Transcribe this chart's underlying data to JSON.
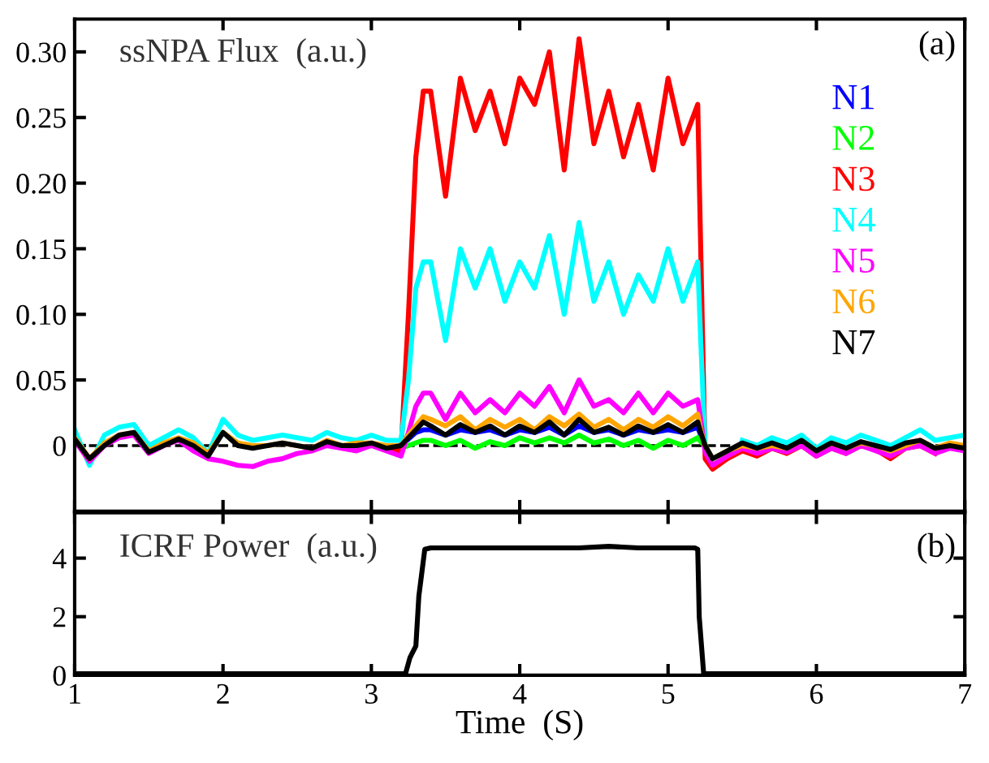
{
  "chart_data": [
    {
      "type": "line",
      "ylabel": "ssNPA Flux  (a.u.)",
      "annotations": [
        "(a)"
      ],
      "x": [
        1.0,
        1.1,
        1.2,
        1.3,
        1.4,
        1.5,
        1.6,
        1.7,
        1.8,
        1.9,
        2.0,
        2.1,
        2.2,
        2.3,
        2.4,
        2.5,
        2.6,
        2.7,
        2.8,
        2.9,
        3.0,
        3.1,
        3.2,
        3.25,
        3.3,
        3.35,
        3.4,
        3.5,
        3.6,
        3.7,
        3.8,
        3.9,
        4.0,
        4.1,
        4.2,
        4.3,
        4.4,
        4.5,
        4.6,
        4.7,
        4.8,
        4.9,
        5.0,
        5.1,
        5.2,
        5.22,
        5.25,
        5.3,
        5.4,
        5.5,
        5.6,
        5.7,
        5.8,
        5.9,
        6.0,
        6.1,
        6.2,
        6.3,
        6.4,
        6.5,
        6.6,
        6.7,
        6.8,
        6.9,
        7.0
      ],
      "series": [
        {
          "name": "N1",
          "color": "#0000ff",
          "values": [
            null,
            null,
            null,
            null,
            null,
            null,
            null,
            null,
            null,
            null,
            null,
            null,
            null,
            null,
            null,
            null,
            null,
            null,
            null,
            null,
            null,
            null,
            null,
            0.005,
            0.01,
            0.012,
            0.012,
            0.008,
            0.012,
            0.01,
            0.012,
            0.008,
            0.012,
            0.01,
            0.014,
            0.008,
            0.015,
            0.01,
            0.012,
            0.008,
            0.012,
            0.01,
            0.012,
            0.01,
            0.014,
            0.008,
            null,
            null,
            null,
            null,
            null,
            null,
            null,
            null,
            null,
            null,
            null,
            null,
            null,
            null,
            null,
            null,
            null,
            null,
            null
          ]
        },
        {
          "name": "N2",
          "color": "#00ff00",
          "values": [
            null,
            null,
            null,
            null,
            null,
            null,
            null,
            null,
            null,
            null,
            null,
            null,
            null,
            null,
            null,
            null,
            null,
            null,
            null,
            null,
            null,
            null,
            -0.002,
            0.0,
            0.002,
            0.004,
            0.004,
            0.0,
            0.004,
            -0.002,
            0.003,
            0.0,
            0.006,
            0.002,
            0.006,
            0.002,
            0.008,
            0.002,
            0.005,
            0.0,
            0.004,
            -0.002,
            0.004,
            0.0,
            0.006,
            0.003,
            0.0,
            null,
            null,
            null,
            null,
            null,
            null,
            null,
            null,
            null,
            null,
            null,
            null,
            null,
            null,
            null,
            null,
            null,
            null
          ]
        },
        {
          "name": "N3",
          "color": "#ff0000",
          "values": [
            null,
            null,
            null,
            null,
            null,
            null,
            null,
            null,
            null,
            null,
            null,
            null,
            null,
            null,
            null,
            null,
            null,
            null,
            null,
            null,
            null,
            -0.002,
            -0.004,
            0.1,
            0.22,
            0.27,
            0.27,
            0.19,
            0.28,
            0.24,
            0.27,
            0.23,
            0.28,
            0.26,
            0.3,
            0.21,
            0.31,
            0.23,
            0.27,
            0.22,
            0.26,
            0.21,
            0.28,
            0.23,
            0.26,
            0.15,
            -0.01,
            -0.018,
            -0.01,
            -0.004,
            -0.008,
            -0.002,
            -0.006,
            0.0,
            -0.008,
            -0.002,
            -0.006,
            0.0,
            -0.003,
            -0.01,
            -0.002,
            0.0,
            -0.006,
            null,
            null
          ]
        },
        {
          "name": "N4",
          "color": "#00ffff",
          "values": [
            0.012,
            -0.015,
            0.008,
            0.014,
            0.016,
            0.0,
            0.006,
            0.012,
            0.006,
            -0.006,
            0.02,
            0.008,
            0.004,
            0.006,
            0.008,
            0.006,
            0.004,
            0.01,
            0.006,
            0.004,
            0.008,
            0.004,
            0.004,
            0.05,
            0.12,
            0.14,
            0.14,
            0.08,
            0.15,
            0.12,
            0.15,
            0.11,
            0.14,
            0.12,
            0.16,
            0.1,
            0.17,
            0.11,
            0.14,
            0.1,
            0.13,
            0.11,
            0.15,
            0.11,
            0.14,
            0.08,
            0.0,
            -0.014,
            null,
            0.004,
            0.0,
            0.006,
            0.002,
            0.008,
            -0.002,
            0.006,
            0.002,
            0.008,
            0.004,
            0.0,
            0.006,
            0.012,
            0.004,
            0.006,
            0.008
          ]
        },
        {
          "name": "N5",
          "color": "#ff00ff",
          "values": [
            0.004,
            -0.012,
            0.0,
            0.006,
            0.008,
            -0.006,
            0.0,
            0.004,
            -0.004,
            -0.01,
            -0.012,
            -0.015,
            -0.016,
            -0.012,
            -0.01,
            -0.006,
            -0.004,
            0.0,
            -0.002,
            -0.004,
            0.0,
            -0.004,
            -0.008,
            0.01,
            0.03,
            0.04,
            0.04,
            0.02,
            0.04,
            0.025,
            0.035,
            0.025,
            0.04,
            0.03,
            0.045,
            0.025,
            0.05,
            0.03,
            0.035,
            0.025,
            0.04,
            0.025,
            0.04,
            0.03,
            0.035,
            0.02,
            -0.005,
            -0.015,
            -0.008,
            -0.002,
            -0.006,
            -0.002,
            -0.005,
            0.0,
            -0.008,
            -0.002,
            -0.006,
            0.0,
            -0.004,
            -0.008,
            -0.002,
            0.0,
            -0.006,
            -0.002,
            -0.004
          ]
        },
        {
          "name": "N6",
          "color": "#ffa500",
          "values": [
            0.006,
            -0.01,
            0.002,
            0.008,
            0.01,
            -0.004,
            0.002,
            0.006,
            0.002,
            -0.006,
            0.01,
            0.002,
            0.0,
            0.0,
            0.002,
            0.0,
            -0.002,
            0.004,
            0.0,
            0.002,
            0.002,
            0.0,
            0.0,
            0.008,
            0.015,
            0.022,
            0.02,
            0.015,
            0.022,
            0.012,
            0.02,
            0.014,
            0.02,
            0.012,
            0.022,
            0.015,
            0.024,
            0.014,
            0.02,
            0.012,
            0.02,
            0.014,
            0.022,
            0.015,
            0.024,
            0.012,
            0.0,
            -0.01,
            -0.004,
            0.0,
            -0.002,
            0.0,
            -0.002,
            0.004,
            -0.004,
            0.002,
            -0.002,
            0.002,
            0.0,
            -0.004,
            0.0,
            0.004,
            -0.002,
            0.002,
            0.0
          ]
        },
        {
          "name": "N7",
          "color": "#000000",
          "values": [
            0.005,
            -0.01,
            0.0,
            0.008,
            0.01,
            -0.005,
            0.0,
            0.005,
            0.0,
            -0.008,
            0.01,
            0.0,
            -0.002,
            0.0,
            0.002,
            0.0,
            -0.002,
            0.003,
            0.0,
            0.0,
            0.002,
            -0.002,
            0.0,
            0.006,
            0.012,
            0.018,
            0.015,
            0.008,
            0.016,
            0.01,
            0.015,
            0.008,
            0.015,
            0.01,
            0.018,
            0.008,
            0.02,
            0.01,
            0.014,
            0.008,
            0.015,
            0.01,
            0.016,
            0.01,
            0.018,
            0.01,
            0.0,
            -0.01,
            -0.004,
            0.002,
            -0.002,
            0.002,
            -0.002,
            0.004,
            -0.004,
            0.002,
            -0.002,
            0.003,
            0.0,
            -0.003,
            0.002,
            0.004,
            -0.002,
            0.0,
            -0.002
          ]
        }
      ],
      "xlim": [
        1,
        7
      ],
      "xticks": [
        1,
        2,
        3,
        4,
        5,
        6,
        7
      ],
      "ylim": [
        -0.05,
        0.325
      ],
      "yticks": [
        {
          "value": 0,
          "label": "0"
        },
        {
          "value": 0.05,
          "label": "0.05"
        },
        {
          "value": 0.1,
          "label": "0.10"
        },
        {
          "value": 0.15,
          "label": "0.15"
        },
        {
          "value": 0.2,
          "label": "0.20"
        },
        {
          "value": 0.25,
          "label": "0.25"
        },
        {
          "value": 0.3,
          "label": "0.30"
        }
      ],
      "ref_lines": [
        {
          "axis": "y",
          "value": 0,
          "color": "#000000",
          "line_style": "dashed"
        }
      ],
      "tick_labels": "y",
      "legend": "top right",
      "line_style": "solid",
      "grid": false
    },
    {
      "type": "line",
      "ylabel": "ICRF Power  (a.u.)",
      "xlabel": "Time  (S)",
      "annotations": [
        "(b)"
      ],
      "x": [
        1.0,
        1.5,
        2.0,
        2.5,
        3.0,
        3.2,
        3.23,
        3.26,
        3.3,
        3.32,
        3.36,
        3.4,
        3.6,
        3.8,
        4.0,
        4.2,
        4.4,
        4.6,
        4.8,
        5.0,
        5.18,
        5.2,
        5.21,
        5.24,
        5.3,
        5.6,
        6.0,
        6.5,
        7.0
      ],
      "series": [
        {
          "color": "#000000",
          "values": [
            0.05,
            0.05,
            0.05,
            0.05,
            0.05,
            0.05,
            0.05,
            0.6,
            1.0,
            2.7,
            4.3,
            4.35,
            4.35,
            4.35,
            4.35,
            4.35,
            4.35,
            4.4,
            4.35,
            4.35,
            4.35,
            4.3,
            2.0,
            0.05,
            0.05,
            0.05,
            0.05,
            0.05,
            0.05
          ]
        }
      ],
      "xlim": [
        1,
        7
      ],
      "xticks": [
        1,
        2,
        3,
        4,
        5,
        6,
        7
      ],
      "ylim": [
        0,
        5.55
      ],
      "yticks": [
        0,
        2,
        4
      ],
      "line_style": "solid",
      "grid": false
    }
  ]
}
